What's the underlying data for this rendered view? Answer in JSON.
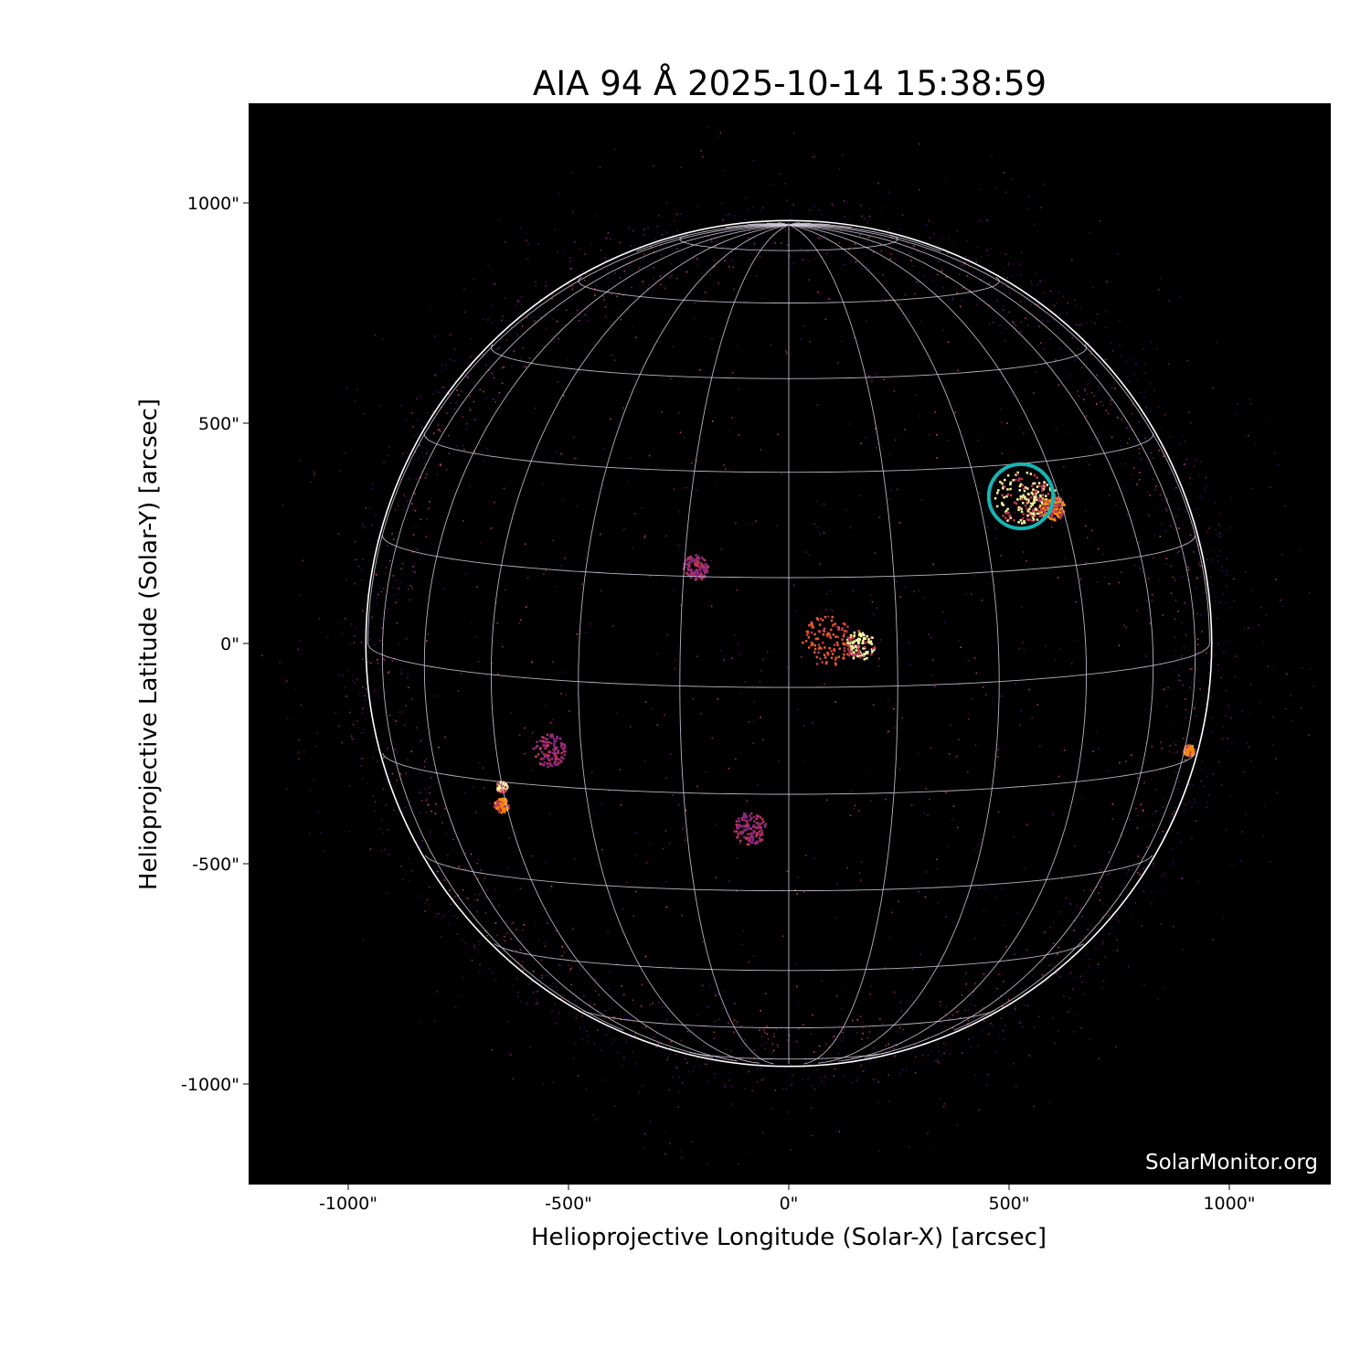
{
  "chart_data": {
    "type": "image",
    "title": "AIA 94 Å 2025-10-14 15:38:59",
    "xlabel": "Helioprojective Longitude (Solar-X) [arcsec]",
    "ylabel": "Helioprojective Latitude (Solar-Y) [arcsec]",
    "xlim": [
      -1228,
      1228
    ],
    "ylim": [
      -1228,
      1228
    ],
    "xticks": [
      {
        "value": -1000,
        "label": "-1000\""
      },
      {
        "value": -500,
        "label": "-500\""
      },
      {
        "value": 0,
        "label": "0\""
      },
      {
        "value": 500,
        "label": "500\""
      },
      {
        "value": 1000,
        "label": "1000\""
      }
    ],
    "yticks": [
      {
        "value": 1000,
        "label": "1000\""
      },
      {
        "value": 500,
        "label": "500\""
      },
      {
        "value": 0,
        "label": "0\""
      },
      {
        "value": -500,
        "label": "-500\""
      },
      {
        "value": -1000,
        "label": "-1000\""
      }
    ],
    "colormap": "inferno-like",
    "background": "#000000",
    "solar_radius_arcsec": 960,
    "grid": {
      "spacing_deg": 15,
      "color": "#d8d0e0"
    },
    "annotation_circle": {
      "x": 527,
      "y": 334,
      "radius": 73,
      "color": "#18b4b4"
    },
    "watermark": "SolarMonitor.org"
  }
}
